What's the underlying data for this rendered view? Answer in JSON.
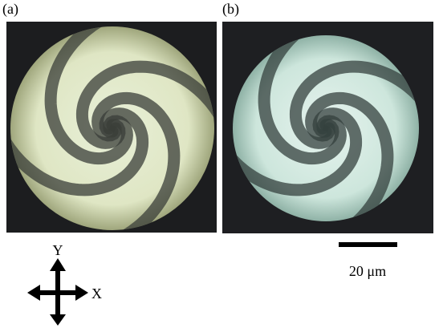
{
  "panels": [
    {
      "label": "(a)"
    },
    {
      "label": "(b)"
    }
  ],
  "scale_bar": {
    "label": "20 μm"
  },
  "axes": {
    "y_label": "Y",
    "x_label": "X"
  }
}
